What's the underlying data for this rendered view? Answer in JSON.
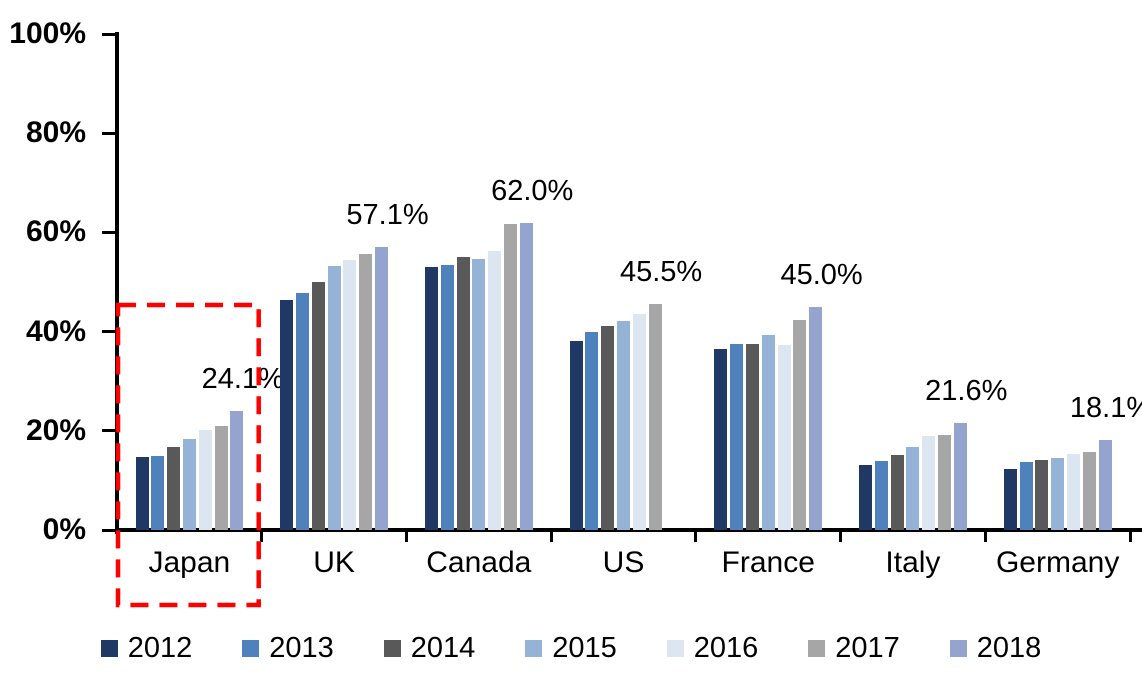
{
  "chart_data": {
    "type": "bar",
    "title": "",
    "xlabel": "",
    "ylabel": "",
    "ylim": [
      0,
      100
    ],
    "grid": false,
    "legend_position": "bottom",
    "yticks": [
      {
        "value": 0,
        "label": "0%"
      },
      {
        "value": 20,
        "label": "20%"
      },
      {
        "value": 40,
        "label": "40%"
      },
      {
        "value": 60,
        "label": "60%"
      },
      {
        "value": 80,
        "label": "80%"
      },
      {
        "value": 100,
        "label": "100%"
      }
    ],
    "categories": [
      "Japan",
      "UK",
      "Canada",
      "US",
      "France",
      "Italy",
      "Germany"
    ],
    "series": [
      {
        "name": "2012",
        "color": "#1F3864",
        "values": [
          14.8,
          46.3,
          53.0,
          38.2,
          36.5,
          13.1,
          12.4
        ]
      },
      {
        "name": "2013",
        "color": "#4F81BD",
        "values": [
          15.0,
          47.8,
          53.5,
          40.0,
          37.6,
          13.9,
          13.8
        ]
      },
      {
        "name": "2014",
        "color": "#595959",
        "values": [
          16.8,
          50.0,
          55.0,
          41.1,
          37.5,
          15.1,
          14.2
        ]
      },
      {
        "name": "2015",
        "color": "#95B3D7",
        "values": [
          18.3,
          53.3,
          54.7,
          42.2,
          39.3,
          16.8,
          14.6
        ]
      },
      {
        "name": "2016",
        "color": "#DCE6F1",
        "values": [
          20.2,
          54.5,
          56.2,
          43.5,
          37.3,
          18.9,
          15.4
        ]
      },
      {
        "name": "2017",
        "color": "#A6A6A6",
        "values": [
          21.0,
          55.7,
          61.7,
          45.5,
          42.3,
          19.1,
          15.8
        ]
      },
      {
        "name": "2018",
        "color": "#95A4CE",
        "values": [
          24.1,
          57.1,
          62.0,
          null,
          45.0,
          21.6,
          18.1
        ]
      }
    ],
    "data_labels": [
      {
        "category": "Japan",
        "text": "24.1%"
      },
      {
        "category": "UK",
        "text": "57.1%"
      },
      {
        "category": "Canada",
        "text": "62.0%"
      },
      {
        "category": "US",
        "text": "45.5%"
      },
      {
        "category": "France",
        "text": "45.0%"
      },
      {
        "category": "Italy",
        "text": "21.6%"
      },
      {
        "category": "Germany",
        "text": "18.1%"
      }
    ],
    "annotations": [
      {
        "type": "highlight-box",
        "category": "Japan",
        "style": "dashed",
        "color": "#FF0000"
      }
    ]
  },
  "legend": {
    "items": [
      {
        "label": "2012",
        "color": "#1F3864"
      },
      {
        "label": "2013",
        "color": "#4F81BD"
      },
      {
        "label": "2014",
        "color": "#595959"
      },
      {
        "label": "2015",
        "color": "#95B3D7"
      },
      {
        "label": "2016",
        "color": "#DCE6F1"
      },
      {
        "label": "2017",
        "color": "#A6A6A6"
      },
      {
        "label": "2018",
        "color": "#95A4CE"
      }
    ]
  }
}
